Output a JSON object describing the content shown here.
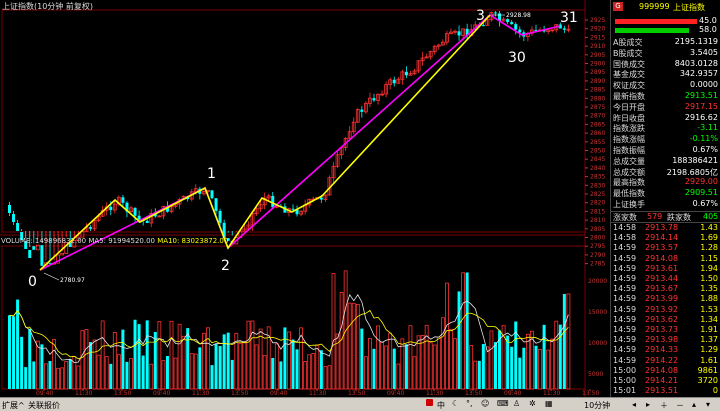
{
  "window": {
    "title": "上证指数(10分钟 前复权)"
  },
  "main_chart": {
    "high_label": "2928.98",
    "low_label": "2780.97",
    "wave_labels": [
      "0",
      "1",
      "2",
      "3",
      "30",
      "31"
    ],
    "price_ticks": [
      "2925",
      "2920",
      "2915",
      "2910",
      "2905",
      "2900",
      "2895",
      "2890",
      "2885",
      "2880",
      "2875",
      "2870",
      "2865",
      "2860",
      "2855",
      "2850",
      "2845",
      "2840",
      "2835",
      "2830",
      "2825",
      "2820",
      "2815",
      "2810",
      "2805",
      "2800",
      "2795",
      "2790",
      "2785"
    ],
    "colors": {
      "up": "#ff3232",
      "down": "#00ffff",
      "zigzag_yellow": "#ffff00",
      "zigzag_magenta": "#ff00ff"
    }
  },
  "volume_panel": {
    "label_volume": "VOLUME: 149896832.00",
    "label_ma5": "MA5: 91994520.00",
    "label_ma10": "MA10: 83023872.00",
    "ticks": [
      "20000",
      "15000",
      "10000",
      "5000"
    ]
  },
  "time_axis": {
    "ticks": [
      "09:40",
      "11:30",
      "13:50",
      "09:40",
      "11:30",
      "13:50",
      "09:40",
      "11:30",
      "13:50",
      "09:40",
      "11:30",
      "13:50",
      "09:40",
      "11:30",
      "13:50"
    ],
    "period_label": "10分钟"
  },
  "right_panel": {
    "code": "999999",
    "name": "上证指数",
    "bar_top_value": "45.0",
    "bar_bottom_value": "58.0",
    "stats": [
      {
        "label": "A股成交",
        "value": "2195.1319",
        "color": "#ffffff"
      },
      {
        "label": "B股成交",
        "value": "3.5405",
        "color": "#ffffff"
      },
      {
        "label": "国债成交",
        "value": "8403.0128",
        "color": "#ffffff"
      },
      {
        "label": "基金成交",
        "value": "342.9357",
        "color": "#ffffff"
      },
      {
        "label": "权证成交",
        "value": "0.0000",
        "color": "#ffffff"
      },
      {
        "label": "最新指数",
        "value": "2913.51",
        "color": "#00ff00"
      },
      {
        "label": "今日开盘",
        "value": "2917.15",
        "color": "#ff3232"
      },
      {
        "label": "昨日收盘",
        "value": "2916.62",
        "color": "#ffffff"
      },
      {
        "label": "指数涨跌",
        "value": "-3.11",
        "color": "#00ff00"
      },
      {
        "label": "指数涨幅",
        "value": "-0.11%",
        "color": "#00ff00"
      },
      {
        "label": "指数振幅",
        "value": "0.67%",
        "color": "#ffffff"
      },
      {
        "label": "总成交量",
        "value": "188386421",
        "color": "#ffffff"
      },
      {
        "label": "总成交额",
        "value": "2198.6805亿",
        "color": "#ffffff"
      },
      {
        "label": "最高指数",
        "value": "2929.00",
        "color": "#ff3232"
      },
      {
        "label": "最低指数",
        "value": "2909.51",
        "color": "#00ff00"
      },
      {
        "label": "上证换手",
        "value": "0.67%",
        "color": "#ffffff"
      }
    ],
    "up_label": "涨家数",
    "up_count": "579",
    "down_label": "跌家数",
    "down_count": "405",
    "ticks": [
      {
        "time": "14:58",
        "price": "2913.78",
        "vol": "1.43"
      },
      {
        "time": "14:58",
        "price": "2914.14",
        "vol": "1.69"
      },
      {
        "time": "14:59",
        "price": "2913.57",
        "vol": "1.28"
      },
      {
        "time": "14:59",
        "price": "2914.08",
        "vol": "1.15"
      },
      {
        "time": "14:59",
        "price": "2913.61",
        "vol": "1.94"
      },
      {
        "time": "14:59",
        "price": "2913.44",
        "vol": "1.50"
      },
      {
        "time": "14:59",
        "price": "2913.67",
        "vol": "1.35"
      },
      {
        "time": "14:59",
        "price": "2913.99",
        "vol": "1.88"
      },
      {
        "time": "14:59",
        "price": "2913.92",
        "vol": "1.53"
      },
      {
        "time": "14:59",
        "price": "2913.62",
        "vol": "1.34"
      },
      {
        "time": "14:59",
        "price": "2913.73",
        "vol": "1.91"
      },
      {
        "time": "14:59",
        "price": "2913.98",
        "vol": "1.37"
      },
      {
        "time": "14:59",
        "price": "2914.33",
        "vol": "1.29"
      },
      {
        "time": "14:59",
        "price": "2914.22",
        "vol": "1.61"
      },
      {
        "time": "15:00",
        "price": "2914.08",
        "vol": "9861"
      },
      {
        "time": "15:00",
        "price": "2914.21",
        "vol": "3720"
      },
      {
        "time": "15:01",
        "price": "2913.51",
        "vol": "0"
      }
    ]
  },
  "status_bar": {
    "left1": "扩展^",
    "left2": "关联报价",
    "ime": "中",
    "tray_icons": [
      "moon-icon",
      "punct-icon",
      "emoji-icon",
      "keyboard-icon",
      "user-icon",
      "settings-icon",
      "grid-icon"
    ]
  }
}
